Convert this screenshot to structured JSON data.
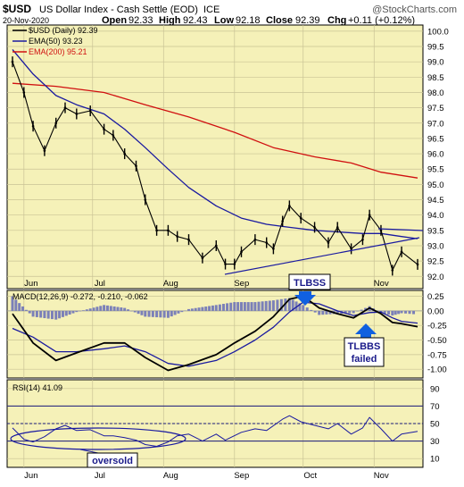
{
  "header": {
    "symbol": "$USD",
    "name": "US Dollar Index - Cash Settle (EOD)",
    "exchange": "ICE",
    "watermark": "@StockCharts.com",
    "date": "20-Nov-2020",
    "open_label": "Open",
    "open": "92.33",
    "high_label": "High",
    "high": "92.43",
    "low_label": "Low",
    "low": "92.18",
    "close_label": "Close",
    "close": "92.39",
    "chg_label": "Chg",
    "chg": "+0.11 (+0.12%)"
  },
  "legend": {
    "price": "$USD (Daily) 92.39",
    "ema50": "EMA(50) 93.23",
    "ema200": "EMA(200) 95.21"
  },
  "macd_panel": {
    "label": "MACD(12,26,9) -0.272, -0.210, -0.062"
  },
  "rsi_panel": {
    "label": "RSI(14) 41.09"
  },
  "annotations": {
    "tlbss": "TLBSS",
    "tlbbs_line1": "TLBBS",
    "tlbbs_line2": "failed",
    "oversold": "oversold"
  },
  "colors": {
    "panel_bg": "#f5f1b8",
    "grid": "#c9c395",
    "price": "#000000",
    "ema50": "#1a1aa0",
    "ema200": "#d01010",
    "macd_line": "#000000",
    "signal_line": "#1a1aa0",
    "histogram": "#7b80b8",
    "rsi_line": "#1a1aa0",
    "rsi_levels": "#1a1a7a",
    "callout": "#1060e0",
    "callout_text": "#1a1a8a"
  },
  "chart_data": [
    {
      "type": "line",
      "price_style": "ohlc-bars",
      "title": "US Dollar Index - Cash Settle (EOD)",
      "x_labels": [
        "Jun",
        "Jul",
        "Aug",
        "Sep",
        "Oct",
        "Nov"
      ],
      "x_range": [
        "2020-05-27",
        "2020-11-20"
      ],
      "ylim": [
        91.6,
        100.2
      ],
      "y_ticks": [
        92.0,
        92.5,
        93.0,
        93.5,
        94.0,
        94.5,
        95.0,
        95.5,
        96.0,
        96.5,
        97.0,
        97.5,
        98.0,
        98.5,
        99.0,
        99.5,
        100.0
      ],
      "grid": true,
      "series": [
        {
          "name": "$USD (Daily)",
          "x": [
            "2020-05-27",
            "2020-06-01",
            "2020-06-05",
            "2020-06-10",
            "2020-06-15",
            "2020-06-19",
            "2020-06-24",
            "2020-06-30",
            "2020-07-06",
            "2020-07-10",
            "2020-07-15",
            "2020-07-20",
            "2020-07-24",
            "2020-07-29",
            "2020-08-03",
            "2020-08-07",
            "2020-08-12",
            "2020-08-18",
            "2020-08-24",
            "2020-08-28",
            "2020-09-01",
            "2020-09-04",
            "2020-09-10",
            "2020-09-15",
            "2020-09-18",
            "2020-09-22",
            "2020-09-25",
            "2020-09-30",
            "2020-10-06",
            "2020-10-12",
            "2020-10-16",
            "2020-10-22",
            "2020-10-27",
            "2020-10-30",
            "2020-11-04",
            "2020-11-09",
            "2020-11-13",
            "2020-11-20"
          ],
          "values": [
            99.0,
            98.0,
            96.9,
            96.1,
            97.0,
            97.5,
            97.3,
            97.4,
            96.8,
            96.6,
            96.0,
            95.6,
            94.5,
            93.5,
            93.5,
            93.3,
            93.2,
            92.6,
            93.0,
            92.4,
            92.4,
            92.8,
            93.2,
            93.1,
            92.9,
            93.8,
            94.3,
            93.9,
            93.6,
            93.1,
            93.6,
            92.9,
            93.2,
            94.0,
            93.5,
            92.2,
            92.8,
            92.39
          ]
        },
        {
          "name": "EMA(50)",
          "x": [
            "2020-05-27",
            "2020-06-05",
            "2020-06-15",
            "2020-06-24",
            "2020-07-06",
            "2020-07-15",
            "2020-07-24",
            "2020-08-03",
            "2020-08-12",
            "2020-08-24",
            "2020-09-04",
            "2020-09-15",
            "2020-09-25",
            "2020-10-06",
            "2020-10-16",
            "2020-10-27",
            "2020-11-04",
            "2020-11-13",
            "2020-11-20"
          ],
          "values": [
            99.4,
            98.6,
            97.9,
            97.6,
            97.3,
            96.8,
            96.2,
            95.5,
            94.9,
            94.3,
            93.9,
            93.7,
            93.6,
            93.5,
            93.45,
            93.4,
            93.4,
            93.3,
            93.23
          ]
        },
        {
          "name": "EMA(200)",
          "x": [
            "2020-05-27",
            "2020-06-15",
            "2020-07-06",
            "2020-07-24",
            "2020-08-12",
            "2020-09-01",
            "2020-09-18",
            "2020-10-06",
            "2020-10-22",
            "2020-11-04",
            "2020-11-20"
          ],
          "values": [
            98.3,
            98.2,
            98.0,
            97.6,
            97.2,
            96.7,
            96.2,
            95.9,
            95.7,
            95.4,
            95.21
          ]
        }
      ],
      "annotations": [
        "TLBSS",
        "TLBBS failed"
      ]
    },
    {
      "type": "line",
      "name": "MACD(12,26,9)",
      "x_labels": [
        "Jun",
        "Jul",
        "Aug",
        "Sep",
        "Oct",
        "Nov"
      ],
      "ylim": [
        -1.15,
        0.35
      ],
      "y_ticks": [
        0.25,
        0.0,
        -0.25,
        -0.5,
        -0.75,
        -1.0
      ],
      "latest": {
        "macd": -0.272,
        "signal": -0.21,
        "histogram": -0.062
      },
      "series": [
        {
          "name": "MACD",
          "x": [
            "2020-05-27",
            "2020-06-05",
            "2020-06-15",
            "2020-06-24",
            "2020-07-06",
            "2020-07-15",
            "2020-07-24",
            "2020-08-03",
            "2020-08-12",
            "2020-08-24",
            "2020-09-01",
            "2020-09-10",
            "2020-09-18",
            "2020-09-25",
            "2020-10-01",
            "2020-10-08",
            "2020-10-16",
            "2020-10-23",
            "2020-10-30",
            "2020-11-04",
            "2020-11-09",
            "2020-11-13",
            "2020-11-20"
          ],
          "values": [
            -0.05,
            -0.55,
            -0.85,
            -0.72,
            -0.55,
            -0.55,
            -0.8,
            -1.02,
            -0.92,
            -0.75,
            -0.55,
            -0.35,
            -0.1,
            0.2,
            0.25,
            0.05,
            -0.05,
            -0.12,
            0.05,
            -0.05,
            -0.2,
            -0.22,
            -0.272
          ]
        },
        {
          "name": "Signal",
          "x": [
            "2020-05-27",
            "2020-06-05",
            "2020-06-15",
            "2020-06-24",
            "2020-07-06",
            "2020-07-15",
            "2020-07-24",
            "2020-08-03",
            "2020-08-12",
            "2020-08-24",
            "2020-09-01",
            "2020-09-10",
            "2020-09-18",
            "2020-09-25",
            "2020-10-01",
            "2020-10-08",
            "2020-10-16",
            "2020-10-23",
            "2020-10-30",
            "2020-11-04",
            "2020-11-09",
            "2020-11-13",
            "2020-11-20"
          ],
          "values": [
            -0.3,
            -0.45,
            -0.7,
            -0.7,
            -0.65,
            -0.6,
            -0.7,
            -0.9,
            -0.95,
            -0.85,
            -0.7,
            -0.5,
            -0.28,
            -0.02,
            0.15,
            0.12,
            0.0,
            -0.08,
            -0.03,
            -0.02,
            -0.12,
            -0.18,
            -0.21
          ]
        }
      ]
    },
    {
      "type": "line",
      "name": "RSI(14)",
      "x_labels": [
        "Jun",
        "Jul",
        "Aug",
        "Sep",
        "Oct",
        "Nov"
      ],
      "ylim": [
        0,
        100
      ],
      "y_ticks": [
        90,
        70,
        50,
        30,
        10
      ],
      "levels": [
        70,
        50,
        30
      ],
      "latest": 41.09,
      "series": [
        {
          "name": "RSI",
          "x": [
            "2020-05-27",
            "2020-06-01",
            "2020-06-05",
            "2020-06-10",
            "2020-06-15",
            "2020-06-19",
            "2020-06-24",
            "2020-06-30",
            "2020-07-06",
            "2020-07-10",
            "2020-07-15",
            "2020-07-20",
            "2020-07-24",
            "2020-07-29",
            "2020-08-03",
            "2020-08-07",
            "2020-08-12",
            "2020-08-18",
            "2020-08-24",
            "2020-08-28",
            "2020-09-04",
            "2020-09-10",
            "2020-09-15",
            "2020-09-22",
            "2020-09-25",
            "2020-09-30",
            "2020-10-06",
            "2020-10-12",
            "2020-10-16",
            "2020-10-22",
            "2020-10-27",
            "2020-10-30",
            "2020-11-04",
            "2020-11-09",
            "2020-11-13",
            "2020-11-20"
          ],
          "values": [
            45,
            32,
            29,
            35,
            44,
            48,
            42,
            43,
            36,
            36,
            34,
            31,
            26,
            24,
            29,
            36,
            38,
            30,
            38,
            31,
            40,
            44,
            42,
            55,
            59,
            52,
            48,
            44,
            50,
            38,
            45,
            57,
            44,
            30,
            38,
            41.09
          ]
        }
      ],
      "annotations": [
        "oversold"
      ]
    }
  ]
}
